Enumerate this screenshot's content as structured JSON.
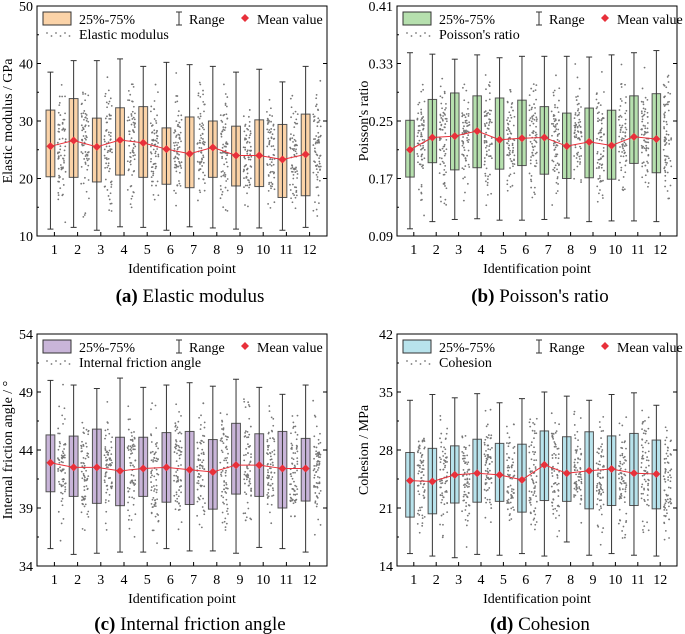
{
  "figure": {
    "xlabel": "Identification point",
    "legend": {
      "box": "25%-75%",
      "range": "Range",
      "mean": "Mean value"
    }
  },
  "chart_data": [
    {
      "type": "box",
      "id": "a",
      "caption_letter": "(a)",
      "caption_text": " Elastic modulus",
      "ylabel": "Elastic modulus / GPa",
      "xlabel": "Identification point",
      "scatter_label": "Elastic modulus",
      "categories": [
        1,
        2,
        3,
        4,
        5,
        6,
        7,
        8,
        9,
        10,
        11,
        12
      ],
      "ylim": [
        10,
        50
      ],
      "yticks": [
        10,
        20,
        30,
        40,
        50
      ],
      "fill": "#fbd3a8",
      "q1": [
        20.3,
        20.2,
        19.4,
        20.6,
        20.2,
        19.0,
        18.4,
        20.2,
        18.7,
        18.6,
        16.7,
        17.0
      ],
      "q3": [
        31.9,
        33.9,
        30.5,
        32.3,
        32.5,
        28.8,
        30.7,
        30.0,
        29.1,
        30.2,
        29.4,
        31.2
      ],
      "min": [
        11.2,
        11.5,
        11.0,
        11.6,
        11.5,
        11.0,
        11.6,
        11.4,
        11.2,
        11.4,
        11.0,
        11.5
      ],
      "max": [
        38.5,
        40.5,
        40.5,
        40.8,
        39.5,
        40.2,
        39.8,
        39.5,
        38.5,
        39.0,
        36.8,
        39.5
      ],
      "mean": [
        25.6,
        26.6,
        25.5,
        26.7,
        26.2,
        25.1,
        24.3,
        25.4,
        24.0,
        24.0,
        23.3,
        24.2
      ]
    },
    {
      "type": "box",
      "id": "b",
      "caption_letter": "(b)",
      "caption_text": " Poisson's ratio",
      "ylabel": "Poisson's ratio",
      "xlabel": "Identification point",
      "scatter_label": "Poisson's ratio",
      "categories": [
        1,
        2,
        3,
        4,
        5,
        6,
        7,
        8,
        9,
        10,
        11,
        12
      ],
      "ylim": [
        0.09,
        0.41
      ],
      "yticks": [
        0.09,
        0.17,
        0.25,
        0.33,
        0.41
      ],
      "fill": "#b6e0ae",
      "q1": [
        0.172,
        0.192,
        0.182,
        0.185,
        0.183,
        0.188,
        0.176,
        0.17,
        0.171,
        0.169,
        0.191,
        0.178
      ],
      "q3": [
        0.251,
        0.28,
        0.289,
        0.285,
        0.282,
        0.279,
        0.27,
        0.261,
        0.268,
        0.265,
        0.285,
        0.288
      ],
      "min": [
        0.1,
        0.11,
        0.113,
        0.114,
        0.112,
        0.112,
        0.113,
        0.115,
        0.11,
        0.111,
        0.111,
        0.11
      ],
      "max": [
        0.345,
        0.343,
        0.336,
        0.342,
        0.338,
        0.34,
        0.34,
        0.34,
        0.339,
        0.342,
        0.345,
        0.348
      ],
      "mean": [
        0.21,
        0.227,
        0.229,
        0.236,
        0.224,
        0.226,
        0.227,
        0.215,
        0.221,
        0.216,
        0.228,
        0.225
      ]
    },
    {
      "type": "box",
      "id": "c",
      "caption_letter": "(c)",
      "caption_text": " Internal friction angle",
      "ylabel": "Internal friction angle / °",
      "xlabel": "Identification point",
      "scatter_label": "Internal friction angle",
      "categories": [
        1,
        2,
        3,
        4,
        5,
        6,
        7,
        8,
        9,
        10,
        11,
        12
      ],
      "ylim": [
        34,
        54
      ],
      "yticks": [
        34,
        39,
        44,
        49,
        54
      ],
      "fill": "#c9b5d9",
      "q1": [
        40.4,
        40.0,
        39.4,
        39.2,
        40.0,
        39.5,
        39.3,
        38.9,
        40.2,
        40.0,
        39.0,
        39.6
      ],
      "q3": [
        45.3,
        45.2,
        45.8,
        45.1,
        45.1,
        45.5,
        45.6,
        44.9,
        46.3,
        45.4,
        45.6,
        45.0
      ],
      "min": [
        35.5,
        35.0,
        35.1,
        35.2,
        35.2,
        35.5,
        35.3,
        35.3,
        35.1,
        35.6,
        35.5,
        35.2
      ],
      "max": [
        50.0,
        49.6,
        49.3,
        50.2,
        49.4,
        49.6,
        49.8,
        49.5,
        50.1,
        49.4,
        48.8,
        49.6
      ],
      "mean": [
        42.9,
        42.5,
        42.5,
        42.2,
        42.4,
        42.5,
        42.3,
        42.1,
        42.7,
        42.7,
        42.4,
        42.4
      ]
    },
    {
      "type": "box",
      "id": "d",
      "caption_letter": "(d)",
      "caption_text": " Cohesion",
      "ylabel": "Cohesion / MPa",
      "xlabel": "Identification point",
      "scatter_label": "Cohesion",
      "categories": [
        1,
        2,
        3,
        4,
        5,
        6,
        7,
        8,
        9,
        10,
        11,
        12
      ],
      "ylim": [
        14,
        42
      ],
      "yticks": [
        14,
        21,
        28,
        35,
        42
      ],
      "fill": "#b8e3ec",
      "q1": [
        19.9,
        20.3,
        21.6,
        21.7,
        21.8,
        20.5,
        21.9,
        21.8,
        20.9,
        21.3,
        21.3,
        20.9
      ],
      "q3": [
        27.7,
        28.2,
        28.5,
        29.3,
        28.8,
        28.7,
        30.3,
        29.6,
        30.2,
        29.7,
        30.0,
        29.2
      ],
      "min": [
        15.5,
        15.2,
        15.0,
        15.4,
        15.3,
        15.5,
        15.2,
        16.9,
        15.3,
        15.5,
        15.3,
        15.2
      ],
      "max": [
        34.0,
        34.7,
        34.3,
        34.8,
        33.7,
        34.2,
        35.0,
        34.5,
        34.0,
        34.7,
        34.9,
        33.4
      ],
      "mean": [
        24.3,
        24.2,
        25.0,
        25.2,
        25.0,
        24.4,
        26.2,
        25.2,
        25.5,
        25.7,
        25.2,
        25.1
      ]
    }
  ]
}
